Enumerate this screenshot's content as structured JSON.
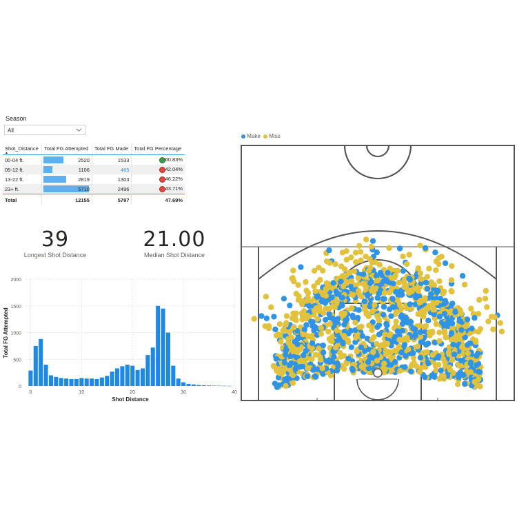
{
  "slicer": {
    "label": "Season",
    "value": "All"
  },
  "table": {
    "headers": [
      "Shot_Distance",
      "Total FG Attempted",
      "Total FG Made",
      "Total FG Percentage"
    ],
    "rows": [
      {
        "distance": "00-04 ft.",
        "attempted": "2520",
        "attempted_value": 2520,
        "made": "1533",
        "pct": "60.83%",
        "status": "good"
      },
      {
        "distance": "05-12 ft.",
        "attempted": "1106",
        "attempted_value": 1106,
        "made": "465",
        "pct": "42.04%",
        "status": "bad"
      },
      {
        "distance": "13-22 ft.",
        "attempted": "2819",
        "attempted_value": 2819,
        "made": "1303",
        "pct": "46.22%",
        "status": "bad"
      },
      {
        "distance": "23+ ft.",
        "attempted": "5710",
        "attempted_value": 5710,
        "made": "2496",
        "pct": "43.71%",
        "status": "bad"
      }
    ],
    "total": {
      "label": "Total",
      "attempted": "12155",
      "made": "5797",
      "pct": "47.69%"
    }
  },
  "cards": [
    {
      "value": "39",
      "label": "Longest Shot Distance"
    },
    {
      "value": "21.00",
      "label": "Median Shot Distance"
    }
  ],
  "colors": {
    "make": "#2f93e6",
    "miss": "#e2c23c",
    "bar": "#1e88e5",
    "court_line": "#555555"
  },
  "chart_data": [
    {
      "type": "bar",
      "xlabel": "Shot Distance",
      "ylabel": "Total FG Attempted",
      "ylim": [
        0,
        2000
      ],
      "yticks": [
        "0",
        "500",
        "1000",
        "1500",
        "2000"
      ],
      "xticks": [
        "0",
        "10",
        "20",
        "30",
        "40"
      ],
      "xlim": [
        -1,
        40
      ],
      "x": [
        0,
        1,
        2,
        3,
        4,
        5,
        6,
        7,
        8,
        9,
        10,
        11,
        12,
        13,
        14,
        15,
        16,
        17,
        18,
        19,
        20,
        21,
        22,
        23,
        24,
        25,
        26,
        27,
        28,
        29,
        30,
        31,
        32,
        33,
        34,
        35,
        36,
        37,
        38,
        39
      ],
      "values": [
        290,
        750,
        880,
        400,
        200,
        170,
        150,
        140,
        130,
        130,
        150,
        140,
        140,
        130,
        160,
        190,
        270,
        330,
        370,
        400,
        380,
        300,
        330,
        580,
        720,
        1500,
        1450,
        1000,
        380,
        140,
        70,
        40,
        30,
        20,
        15,
        10,
        8,
        6,
        4,
        3
      ],
      "grid": true
    },
    {
      "type": "scatter",
      "legend": [
        "Make",
        "Miss"
      ],
      "legend_position": "top-left",
      "series": [
        {
          "name": "Make",
          "count": 5797
        },
        {
          "name": "Miss",
          "count": 6358
        }
      ]
    }
  ]
}
